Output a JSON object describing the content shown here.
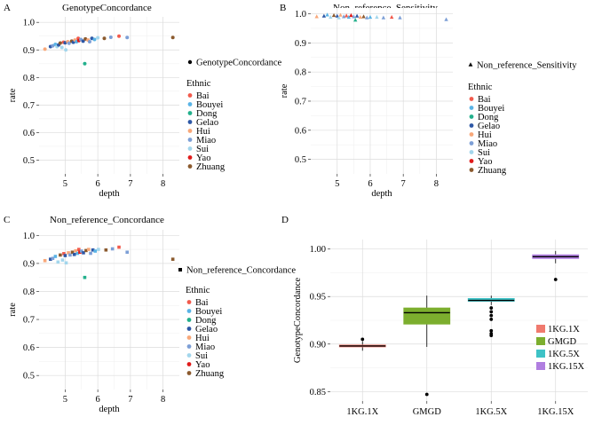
{
  "ethnic_colors": {
    "Bai": "#f25a4c",
    "Bouyei": "#5ab4e6",
    "Dong": "#23b08c",
    "Gelao": "#2e58a6",
    "Hui": "#f8a87a",
    "Miao": "#7d9fd6",
    "Sui": "#a3d6ec",
    "Yao": "#e01b1b",
    "Zhuang": "#8b5a2e"
  },
  "chart_data": [
    {
      "type": "scatter",
      "panel_label": "A",
      "title": "GenotypeConcordance",
      "xlabel": "depth",
      "ylabel": "rate",
      "xlim": [
        4.2,
        8.5
      ],
      "ylim": [
        0.45,
        1.02
      ],
      "xticks": [
        5,
        6,
        7,
        8
      ],
      "yticks": [
        0.5,
        0.6,
        0.7,
        0.8,
        0.9,
        1.0
      ],
      "ytick_labels": [
        "0.5",
        "0.6",
        "0.7",
        "0.8",
        "0.9",
        "1.0"
      ],
      "marker": "circle",
      "grid": true,
      "legend_metric": "GenotypeConcordance",
      "legend_title": "Ethnic",
      "legend_items": [
        "Bai",
        "Bouyei",
        "Dong",
        "Gelao",
        "Hui",
        "Miao",
        "Sui",
        "Yao",
        "Zhuang"
      ],
      "points": [
        {
          "x": 4.38,
          "y": 0.903,
          "g": "Hui"
        },
        {
          "x": 4.55,
          "y": 0.912,
          "g": "Gelao"
        },
        {
          "x": 4.62,
          "y": 0.915,
          "g": "Miao"
        },
        {
          "x": 4.7,
          "y": 0.92,
          "g": "Bouyei"
        },
        {
          "x": 4.75,
          "y": 0.912,
          "g": "Sui"
        },
        {
          "x": 4.8,
          "y": 0.918,
          "g": "Gelao"
        },
        {
          "x": 4.85,
          "y": 0.925,
          "g": "Zhuang"
        },
        {
          "x": 4.9,
          "y": 0.909,
          "g": "Sui"
        },
        {
          "x": 4.95,
          "y": 0.928,
          "g": "Bai"
        },
        {
          "x": 5.0,
          "y": 0.926,
          "g": "Gelao"
        },
        {
          "x": 5.02,
          "y": 0.9,
          "g": "Sui"
        },
        {
          "x": 5.08,
          "y": 0.93,
          "g": "Hui"
        },
        {
          "x": 5.12,
          "y": 0.924,
          "g": "Miao"
        },
        {
          "x": 5.2,
          "y": 0.932,
          "g": "Zhuang"
        },
        {
          "x": 5.25,
          "y": 0.928,
          "g": "Gelao"
        },
        {
          "x": 5.3,
          "y": 0.936,
          "g": "Hui"
        },
        {
          "x": 5.35,
          "y": 0.93,
          "g": "Bouyei"
        },
        {
          "x": 5.4,
          "y": 0.942,
          "g": "Bai"
        },
        {
          "x": 5.42,
          "y": 0.934,
          "g": "Yao"
        },
        {
          "x": 5.48,
          "y": 0.938,
          "g": "Miao"
        },
        {
          "x": 5.55,
          "y": 0.932,
          "g": "Gelao"
        },
        {
          "x": 5.6,
          "y": 0.85,
          "g": "Dong"
        },
        {
          "x": 5.62,
          "y": 0.94,
          "g": "Zhuang"
        },
        {
          "x": 5.7,
          "y": 0.936,
          "g": "Hui"
        },
        {
          "x": 5.75,
          "y": 0.93,
          "g": "Miao"
        },
        {
          "x": 5.82,
          "y": 0.942,
          "g": "Gelao"
        },
        {
          "x": 5.9,
          "y": 0.938,
          "g": "Bouyei"
        },
        {
          "x": 6.0,
          "y": 0.944,
          "g": "Sui"
        },
        {
          "x": 6.2,
          "y": 0.942,
          "g": "Zhuang"
        },
        {
          "x": 6.4,
          "y": 0.946,
          "g": "Miao"
        },
        {
          "x": 6.65,
          "y": 0.95,
          "g": "Bai"
        },
        {
          "x": 6.9,
          "y": 0.945,
          "g": "Miao"
        },
        {
          "x": 8.3,
          "y": 0.945,
          "g": "Zhuang"
        }
      ]
    },
    {
      "type": "scatter",
      "panel_label": "B",
      "title": "Non_reference_Sensitivity",
      "xlabel": "depth",
      "ylabel": "rate",
      "xlim": [
        4.2,
        8.5
      ],
      "ylim": [
        0.45,
        1.02
      ],
      "xticks": [
        5,
        6,
        7,
        8
      ],
      "yticks": [
        0.5,
        0.6,
        0.7,
        0.8,
        0.9,
        1.0
      ],
      "ytick_labels": [
        "0.5",
        "0.6",
        "0.7",
        "0.8",
        "0.9",
        "1.0"
      ],
      "marker": "triangle",
      "grid": true,
      "legend_metric": "Non_reference_Sensitivity",
      "legend_title": "Ethnic",
      "legend_items": [
        "Bai",
        "Bouyei",
        "Dong",
        "Gelao",
        "Hui",
        "Miao",
        "Sui",
        "Yao",
        "Zhuang"
      ],
      "points": [
        {
          "x": 4.38,
          "y": 0.99,
          "g": "Hui"
        },
        {
          "x": 4.6,
          "y": 0.992,
          "g": "Gelao"
        },
        {
          "x": 4.7,
          "y": 0.996,
          "g": "Bouyei"
        },
        {
          "x": 4.8,
          "y": 0.988,
          "g": "Sui"
        },
        {
          "x": 4.9,
          "y": 0.994,
          "g": "Zhuang"
        },
        {
          "x": 5.0,
          "y": 0.992,
          "g": "Gelao"
        },
        {
          "x": 5.05,
          "y": 0.986,
          "g": "Sui"
        },
        {
          "x": 5.1,
          "y": 0.995,
          "g": "Hui"
        },
        {
          "x": 5.2,
          "y": 0.99,
          "g": "Miao"
        },
        {
          "x": 5.28,
          "y": 0.993,
          "g": "Bai"
        },
        {
          "x": 5.35,
          "y": 0.988,
          "g": "Bouyei"
        },
        {
          "x": 5.42,
          "y": 0.994,
          "g": "Yao"
        },
        {
          "x": 5.5,
          "y": 0.99,
          "g": "Miao"
        },
        {
          "x": 5.55,
          "y": 0.978,
          "g": "Dong"
        },
        {
          "x": 5.6,
          "y": 0.992,
          "g": "Gelao"
        },
        {
          "x": 5.7,
          "y": 0.988,
          "g": "Hui"
        },
        {
          "x": 5.8,
          "y": 0.99,
          "g": "Zhuang"
        },
        {
          "x": 5.9,
          "y": 0.986,
          "g": "Miao"
        },
        {
          "x": 6.0,
          "y": 0.988,
          "g": "Bouyei"
        },
        {
          "x": 6.2,
          "y": 0.988,
          "g": "Sui"
        },
        {
          "x": 6.4,
          "y": 0.986,
          "g": "Miao"
        },
        {
          "x": 6.65,
          "y": 0.988,
          "g": "Bai"
        },
        {
          "x": 6.9,
          "y": 0.986,
          "g": "Miao"
        },
        {
          "x": 8.3,
          "y": 0.98,
          "g": "Miao"
        }
      ]
    },
    {
      "type": "scatter",
      "panel_label": "C",
      "title": "Non_reference_Concordance",
      "xlabel": "depth",
      "ylabel": "rate",
      "xlim": [
        4.2,
        8.5
      ],
      "ylim": [
        0.45,
        1.02
      ],
      "xticks": [
        5,
        6,
        7,
        8
      ],
      "yticks": [
        0.5,
        0.6,
        0.7,
        0.8,
        0.9,
        1.0
      ],
      "ytick_labels": [
        "0.5",
        "0.6",
        "0.7",
        "0.8",
        "0.9",
        "1.0"
      ],
      "marker": "square",
      "grid": true,
      "legend_metric": "Non_reference_Concordance",
      "legend_title": "Ethnic",
      "legend_items": [
        "Bai",
        "Bouyei",
        "Dong",
        "Gelao",
        "Hui",
        "Miao",
        "Sui",
        "Yao",
        "Zhuang"
      ],
      "points": [
        {
          "x": 4.38,
          "y": 0.91,
          "g": "Hui"
        },
        {
          "x": 4.55,
          "y": 0.915,
          "g": "Gelao"
        },
        {
          "x": 4.62,
          "y": 0.918,
          "g": "Miao"
        },
        {
          "x": 4.7,
          "y": 0.925,
          "g": "Bouyei"
        },
        {
          "x": 4.78,
          "y": 0.905,
          "g": "Sui"
        },
        {
          "x": 4.85,
          "y": 0.93,
          "g": "Zhuang"
        },
        {
          "x": 4.92,
          "y": 0.912,
          "g": "Sui"
        },
        {
          "x": 4.96,
          "y": 0.935,
          "g": "Bai"
        },
        {
          "x": 5.0,
          "y": 0.928,
          "g": "Gelao"
        },
        {
          "x": 5.03,
          "y": 0.902,
          "g": "Sui"
        },
        {
          "x": 5.1,
          "y": 0.938,
          "g": "Hui"
        },
        {
          "x": 5.15,
          "y": 0.93,
          "g": "Miao"
        },
        {
          "x": 5.22,
          "y": 0.94,
          "g": "Zhuang"
        },
        {
          "x": 5.28,
          "y": 0.932,
          "g": "Gelao"
        },
        {
          "x": 5.32,
          "y": 0.945,
          "g": "Hui"
        },
        {
          "x": 5.38,
          "y": 0.936,
          "g": "Bouyei"
        },
        {
          "x": 5.42,
          "y": 0.95,
          "g": "Bai"
        },
        {
          "x": 5.45,
          "y": 0.94,
          "g": "Yao"
        },
        {
          "x": 5.5,
          "y": 0.944,
          "g": "Miao"
        },
        {
          "x": 5.56,
          "y": 0.938,
          "g": "Gelao"
        },
        {
          "x": 5.6,
          "y": 0.85,
          "g": "Dong"
        },
        {
          "x": 5.64,
          "y": 0.946,
          "g": "Zhuang"
        },
        {
          "x": 5.72,
          "y": 0.95,
          "g": "Hui"
        },
        {
          "x": 5.78,
          "y": 0.936,
          "g": "Miao"
        },
        {
          "x": 5.85,
          "y": 0.948,
          "g": "Gelao"
        },
        {
          "x": 5.92,
          "y": 0.944,
          "g": "Bouyei"
        },
        {
          "x": 6.02,
          "y": 0.95,
          "g": "Sui"
        },
        {
          "x": 6.25,
          "y": 0.948,
          "g": "Zhuang"
        },
        {
          "x": 6.45,
          "y": 0.952,
          "g": "Miao"
        },
        {
          "x": 6.65,
          "y": 0.958,
          "g": "Bai"
        },
        {
          "x": 6.9,
          "y": 0.94,
          "g": "Miao"
        },
        {
          "x": 8.3,
          "y": 0.915,
          "g": "Zhuang"
        }
      ]
    },
    {
      "type": "box",
      "panel_label": "D",
      "title": "",
      "xlabel": "",
      "ylabel": "GenotypeConcordance",
      "ylim": [
        0.84,
        1.01
      ],
      "yticks": [
        0.85,
        0.9,
        0.95,
        1.0
      ],
      "ytick_labels": [
        "0.85",
        "0.90",
        "0.95",
        "1.00"
      ],
      "grid": true,
      "categories": [
        "1KG.1X",
        "GMGD",
        "1KG.5X",
        "1KG.15X"
      ],
      "legend_items": [
        "1KG.1X",
        "GMGD",
        "1KG.5X",
        "1KG.15X"
      ],
      "colors": [
        "#f07a6e",
        "#7cae2e",
        "#3ec2c6",
        "#b07ee0"
      ],
      "boxes": [
        {
          "min": 0.893,
          "q1": 0.897,
          "median": 0.898,
          "q3": 0.899,
          "max": 0.903,
          "outliers": [
            0.905
          ]
        },
        {
          "min": 0.897,
          "q1": 0.921,
          "median": 0.933,
          "q3": 0.938,
          "max": 0.951,
          "outliers": [
            0.847
          ]
        },
        {
          "min": 0.941,
          "q1": 0.945,
          "median": 0.946,
          "q3": 0.948,
          "max": 0.951,
          "outliers": [
            0.938,
            0.934,
            0.93,
            0.926,
            0.914,
            0.911,
            0.909
          ]
        },
        {
          "min": 0.985,
          "q1": 0.99,
          "median": 0.992,
          "q3": 0.994,
          "max": 0.998,
          "outliers": [
            0.968
          ]
        }
      ]
    }
  ]
}
